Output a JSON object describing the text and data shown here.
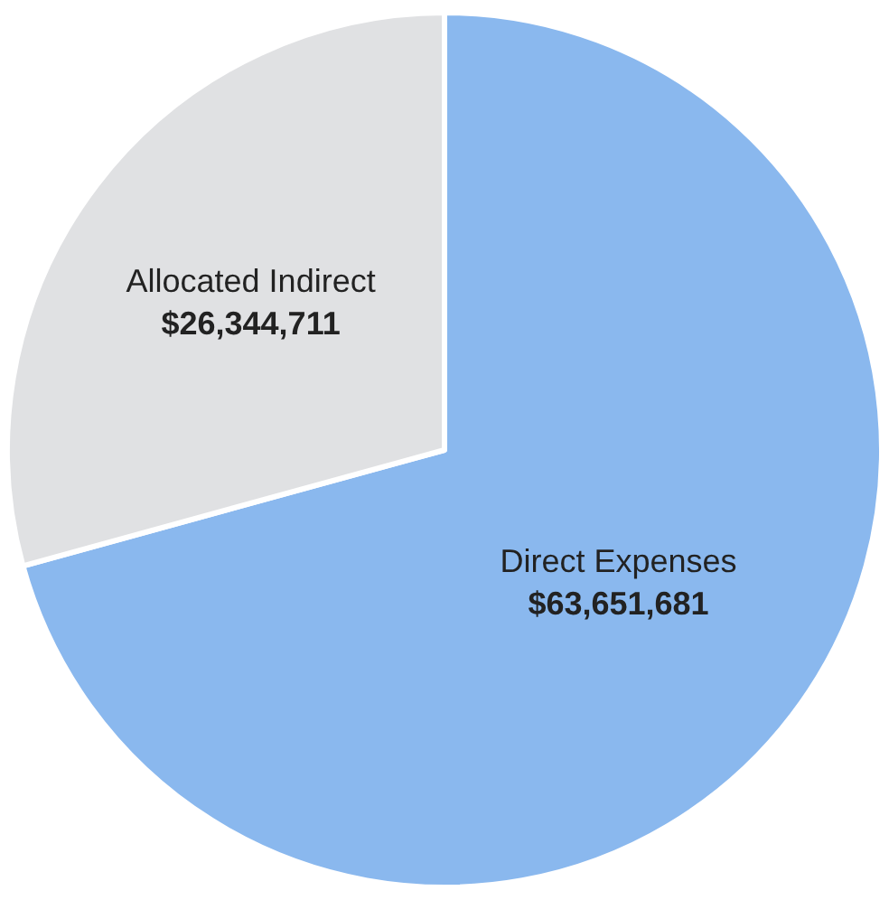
{
  "chart_data": {
    "type": "pie",
    "categories": [
      "Direct Expenses",
      "Allocated Indirect"
    ],
    "values": [
      63651681,
      26344711
    ],
    "value_labels": [
      "$63,651,681",
      "$26,344,711"
    ],
    "colors": [
      "#8ab8ee",
      "#e0e1e3"
    ],
    "legend": false
  }
}
